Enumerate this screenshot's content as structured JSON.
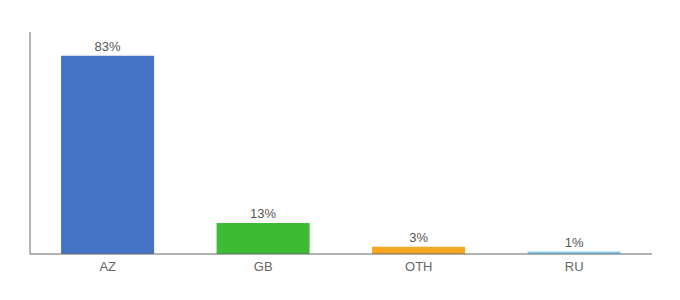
{
  "chart_data": {
    "type": "bar",
    "categories": [
      "AZ",
      "GB",
      "OTH",
      "RU"
    ],
    "values": [
      83,
      13,
      3,
      1
    ],
    "value_labels": [
      "83%",
      "13%",
      "3%",
      "1%"
    ],
    "colors": [
      "#4472c4",
      "#3dbb35",
      "#f5a623",
      "#87ceeb"
    ],
    "ylim": [
      0,
      93
    ],
    "data_labels": true,
    "tick_labels": "x",
    "grid": false
  }
}
